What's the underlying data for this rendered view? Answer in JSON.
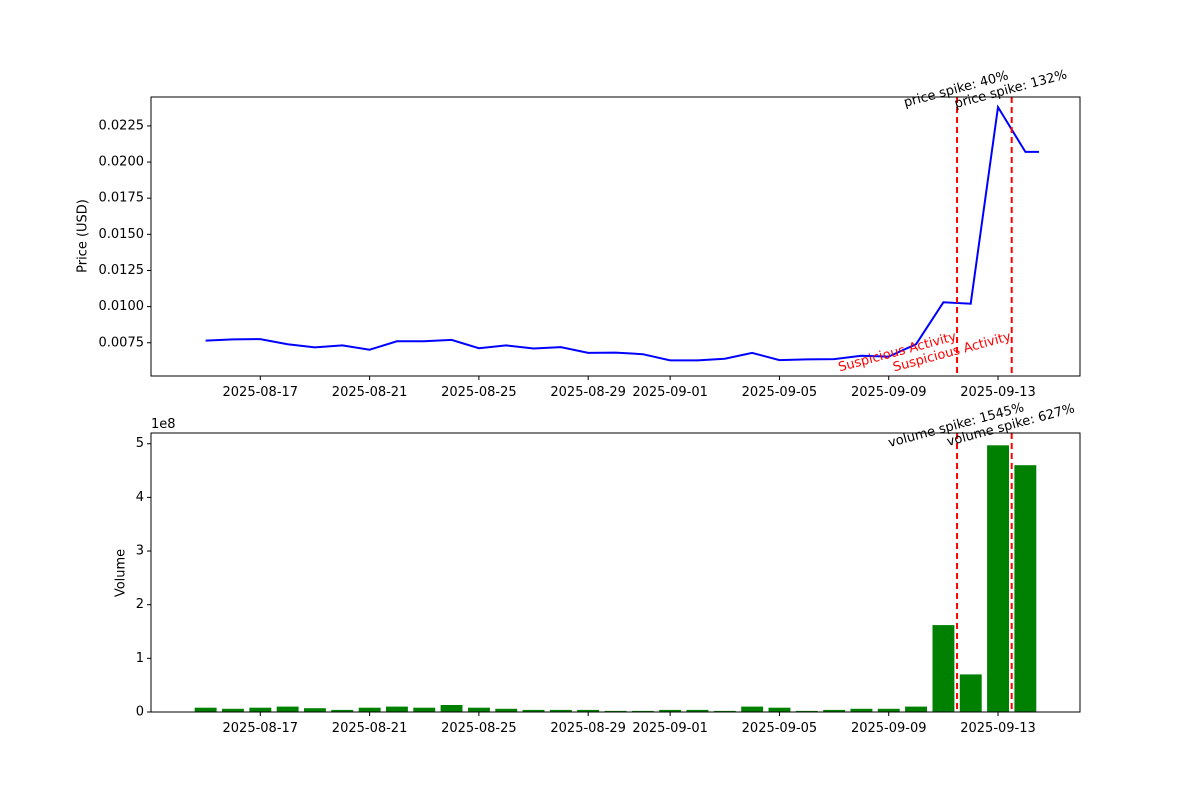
{
  "chart_data": [
    {
      "type": "line",
      "title": "",
      "xlabel": "",
      "ylabel": "Price (USD)",
      "line_color": "#0000ff",
      "x_tick_labels": [
        "2025-08-17",
        "2025-08-21",
        "2025-08-25",
        "2025-08-29",
        "2025-09-01",
        "2025-09-05",
        "2025-09-09",
        "2025-09-13"
      ],
      "y_tick_labels": [
        "0.0075",
        "0.0100",
        "0.0125",
        "0.0150",
        "0.0175",
        "0.0200",
        "0.0225"
      ],
      "ylim": [
        0.0052,
        0.0245
      ],
      "xlim": [
        "2025-08-13",
        "2025-09-16"
      ],
      "series": [
        {
          "x": [
            "2025-08-15",
            "2025-08-16",
            "2025-08-17",
            "2025-08-18",
            "2025-08-19",
            "2025-08-20",
            "2025-08-21",
            "2025-08-22",
            "2025-08-23",
            "2025-08-24",
            "2025-08-25",
            "2025-08-26",
            "2025-08-27",
            "2025-08-28",
            "2025-08-29",
            "2025-08-30",
            "2025-08-31",
            "2025-09-01",
            "2025-09-02",
            "2025-09-03",
            "2025-09-04",
            "2025-09-05",
            "2025-09-06",
            "2025-09-07",
            "2025-09-08",
            "2025-09-09",
            "2025-09-10",
            "2025-09-11",
            "2025-09-12",
            "2025-09-13",
            "2025-09-14",
            "2025-09-14T12:00"
          ],
          "values": [
            0.00765,
            0.00773,
            0.00775,
            0.0074,
            0.00718,
            0.00732,
            0.00702,
            0.0076,
            0.0076,
            0.0077,
            0.00712,
            0.00732,
            0.0071,
            0.0072,
            0.0068,
            0.00682,
            0.00671,
            0.00628,
            0.00628,
            0.0064,
            0.0068,
            0.0063,
            0.00635,
            0.00637,
            0.0066,
            0.00654,
            0.0074,
            0.0103,
            0.0102,
            0.0238,
            0.0207,
            0.0207
          ]
        }
      ],
      "markers": [
        {
          "x": "2025-09-11T12:00",
          "label": "price spike: 40%",
          "sub_label": "Suspicious Activity"
        },
        {
          "x": "2025-09-13T12:00",
          "label": "price spike: 132%",
          "sub_label": "Suspicious Activity"
        }
      ]
    },
    {
      "type": "bar",
      "title": "",
      "xlabel": "",
      "ylabel": "Volume",
      "y_multiplier_label": "1e8",
      "bar_color": "#008000",
      "x_tick_labels": [
        "2025-08-17",
        "2025-08-21",
        "2025-08-25",
        "2025-08-29",
        "2025-09-01",
        "2025-09-05",
        "2025-09-09",
        "2025-09-13"
      ],
      "y_tick_labels": [
        "0",
        "1",
        "2",
        "3",
        "4",
        "5"
      ],
      "ylim": [
        0,
        5.2
      ],
      "xlim": [
        "2025-08-13",
        "2025-09-16"
      ],
      "categories": [
        "2025-08-15",
        "2025-08-16",
        "2025-08-17",
        "2025-08-18",
        "2025-08-19",
        "2025-08-20",
        "2025-08-21",
        "2025-08-22",
        "2025-08-23",
        "2025-08-24",
        "2025-08-25",
        "2025-08-26",
        "2025-08-27",
        "2025-08-28",
        "2025-08-29",
        "2025-08-30",
        "2025-08-31",
        "2025-09-01",
        "2025-09-02",
        "2025-09-03",
        "2025-09-04",
        "2025-09-05",
        "2025-09-06",
        "2025-09-07",
        "2025-09-08",
        "2025-09-09",
        "2025-09-10",
        "2025-09-11",
        "2025-09-12",
        "2025-09-13",
        "2025-09-14"
      ],
      "values": [
        0.08,
        0.06,
        0.08,
        0.1,
        0.07,
        0.04,
        0.08,
        0.1,
        0.08,
        0.13,
        0.08,
        0.06,
        0.04,
        0.04,
        0.04,
        0.02,
        0.02,
        0.04,
        0.04,
        0.02,
        0.1,
        0.08,
        0.02,
        0.04,
        0.06,
        0.06,
        0.1,
        1.62,
        0.7,
        4.97,
        4.6
      ],
      "markers": [
        {
          "x": "2025-09-11T12:00",
          "label": "volume spike: 1545%"
        },
        {
          "x": "2025-09-13T12:00",
          "label": "volume spike: 627%"
        }
      ]
    }
  ]
}
